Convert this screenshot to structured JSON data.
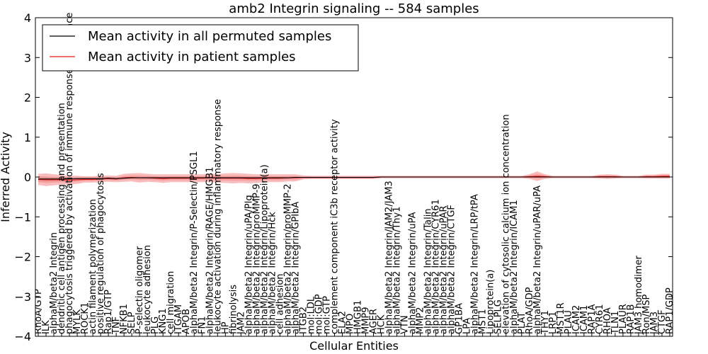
{
  "chart_data": {
    "type": "line",
    "title": "amb2 Integrin signaling -- 584 samples",
    "xlabel": "Cellular Entities",
    "ylabel": "Inferred Activity",
    "ylim": [
      -4,
      4
    ],
    "yticks": [
      -4,
      -3,
      -2,
      -1,
      0,
      1,
      2,
      3,
      4
    ],
    "ytick_labels": [
      "−4",
      "−3",
      "−2",
      "−1",
      "0",
      "1",
      "2",
      "3",
      "4"
    ],
    "grid": false,
    "legend_position": "top-left",
    "legend": [
      {
        "label": "Mean activity in all permuted samples",
        "color": "#000000"
      },
      {
        "label": "Mean activity in patient samples",
        "color": "#e31a1c"
      }
    ],
    "colors": {
      "permuted": "#000000",
      "patient": "#e31a1c",
      "band": "#f47c7c",
      "band_gray": "#b8b8b8"
    },
    "categories": [
      "RhoA/GTP",
      "ILK",
      "alphaM/beta2 Integrin",
      "dendritic cell antigen processing and presentation",
      "phagocytosis triggered by activation of immune response cell surface",
      "MYLK",
      "ROCK1",
      "actin filament polymerization",
      "positive regulation of phagocytosis",
      "Rap1/GTP",
      "TNF",
      "NFKB1",
      "SELP",
      "P-selectin oligomer",
      "leukocyte adhesion",
      "PLG",
      "KNG1",
      "cell migration",
      "ITGAM",
      "APOB",
      "alphaM/beta2 Integrin/P-Selectin/PSGL1",
      "FN1",
      "alphaM/beta2 Integrin/RAGE/HMGB1",
      "leukocyte activation during inflammatory response",
      "HP",
      "fibrinolysis",
      "JAM2",
      "alphaM/beta2 Integrin/uPA/Plg",
      "alphaM/beta2 Integrin/proMMP-9",
      "alphaM/beta2 Integrin/Lipoprotein(a)",
      "alphaM/beta2 Integrin/Hck",
      "cell adhesion",
      "alphaM/beta2 Integrin/proMMP-2",
      "alphaM/beta2 Integrin/GPIbA",
      "ITGB2",
      "mol:LDL",
      "mol:GDP",
      "mol:GTP",
      "complement component iC3b receptor activity",
      "ELA2",
      "MPO",
      "HMGB1",
      "MMP9",
      "AGER",
      "HCK",
      "alphaM/beta2 Integrin/JAM2/JAM3",
      "alphaM/beta2 Integrin/Thy1",
      "VTN",
      "alphaM/beta2 Integrin/uPA",
      "MMP2",
      "alphaM/beta2 Integrin/Talin",
      "alphaM/beta2 Integrin/CYR61",
      "alphaM/beta2 Integrin/uPAR",
      "alphaM/beta2 Integrin/CTGF",
      "GP1BA",
      "LPA",
      "alphaM/beta2 Integrin/LRP/tPA",
      "MST1",
      "Lipoprotein(a)",
      "SELPLG",
      "elevation of cytosolic calcium ion concentration",
      "alphaM/beta2 Integrin/ICAM1",
      "PLAT",
      "RhoA/GDP",
      "alphaM/beta2 Integrin/uPAR/uPA",
      "THY1",
      "LRP1",
      "MST1R",
      "PLAU",
      "ICAM2",
      "ICAM1",
      "RAP1A",
      "CYR61",
      "RHOA",
      "TLN1",
      "PLAUR",
      "RAP1B",
      "JAM3 homodimer",
      "Ron/MSP",
      "JAM3",
      "CTGF",
      "RAP1/GDP"
    ],
    "series": [
      {
        "name": "Mean activity in all permuted samples",
        "values": [
          -0.05,
          -0.05,
          -0.05,
          -0.05,
          -0.05,
          -0.04,
          -0.04,
          -0.04,
          -0.04,
          -0.03,
          -0.04,
          -0.03,
          -0.02,
          -0.02,
          -0.02,
          -0.02,
          -0.02,
          -0.02,
          -0.02,
          -0.02,
          -0.02,
          -0.02,
          -0.02,
          -0.02,
          -0.02,
          -0.02,
          -0.02,
          -0.02,
          -0.02,
          -0.02,
          -0.02,
          -0.02,
          -0.02,
          -0.01,
          -0.01,
          -0.01,
          -0.01,
          -0.01,
          -0.01,
          -0.01,
          -0.01,
          -0.01,
          -0.01,
          -0.01,
          0.0,
          0.0,
          0.0,
          0.0,
          0.0,
          0.0,
          0.0,
          0.0,
          0.0,
          0.0,
          0.0,
          0.0,
          0.0,
          0.0,
          0.0,
          0.0,
          0.0,
          0.0,
          0.0,
          0.0,
          0.0,
          0.0,
          0.0,
          0.0,
          0.0,
          0.0,
          0.0,
          0.0,
          0.0,
          0.0,
          0.0,
          0.0,
          0.0,
          0.0,
          0.0,
          0.0,
          0.0,
          0.0
        ]
      },
      {
        "name": "Mean activity in patient samples",
        "values": [
          -0.06,
          -0.07,
          -0.07,
          -0.07,
          -0.08,
          -0.07,
          -0.06,
          -0.06,
          -0.05,
          -0.04,
          -0.05,
          -0.02,
          -0.01,
          -0.02,
          -0.02,
          -0.03,
          -0.04,
          -0.03,
          -0.03,
          -0.03,
          -0.03,
          -0.03,
          -0.02,
          -0.03,
          -0.03,
          -0.03,
          -0.03,
          -0.04,
          -0.04,
          -0.03,
          -0.03,
          -0.03,
          -0.02,
          -0.02,
          -0.01,
          -0.01,
          -0.01,
          -0.01,
          -0.01,
          -0.01,
          -0.01,
          -0.01,
          -0.01,
          -0.01,
          0.0,
          0.0,
          0.0,
          0.0,
          0.0,
          0.0,
          0.0,
          0.0,
          0.0,
          0.0,
          0.0,
          0.0,
          0.0,
          0.0,
          0.0,
          0.0,
          0.0,
          0.0,
          0.0,
          0.01,
          0.02,
          0.01,
          0.0,
          0.0,
          0.0,
          0.0,
          0.0,
          0.0,
          0.01,
          0.01,
          0.01,
          0.0,
          0.0,
          0.0,
          0.01,
          0.01,
          0.02,
          0.02
        ]
      },
      {
        "name": "",
        "values": [
          0.14,
          0.16,
          0.14,
          0.12,
          0.11,
          0.1,
          0.08,
          0.08,
          0.08,
          0.08,
          0.08,
          0.1,
          0.1,
          0.12,
          0.1,
          0.1,
          0.11,
          0.1,
          0.1,
          0.1,
          0.1,
          0.1,
          0.1,
          0.11,
          0.12,
          0.13,
          0.12,
          0.12,
          0.11,
          0.1,
          0.1,
          0.1,
          0.09,
          0.09,
          0.05,
          0.04,
          0.04,
          0.04,
          0.04,
          0.04,
          0.04,
          0.04,
          0.04,
          0.04,
          0.03,
          0.03,
          0.03,
          0.03,
          0.03,
          0.03,
          0.03,
          0.03,
          0.03,
          0.03,
          0.03,
          0.03,
          0.03,
          0.03,
          0.03,
          0.03,
          0.03,
          0.03,
          0.03,
          0.06,
          0.12,
          0.06,
          0.03,
          0.03,
          0.03,
          0.03,
          0.03,
          0.03,
          0.05,
          0.06,
          0.05,
          0.03,
          0.03,
          0.03,
          0.05,
          0.05,
          0.06,
          0.06
        ]
      },
      {
        "name": "",
        "values": [
          0.06,
          0.06,
          0.05,
          0.05,
          0.05,
          0.04,
          0.04,
          0.04,
          0.04,
          0.03,
          0.04,
          0.03,
          0.02,
          0.02,
          0.03,
          0.03,
          0.03,
          0.03,
          0.03,
          0.03,
          0.03,
          0.03,
          0.03,
          0.03,
          0.03,
          0.03,
          0.03,
          0.03,
          0.03,
          0.03,
          0.03,
          0.03,
          0.03,
          0.02,
          0.02,
          0.02,
          0.02,
          0.02,
          0.02,
          0.02,
          0.02,
          0.02,
          0.02,
          0.02,
          0.02,
          0.02,
          0.02,
          0.02,
          0.02,
          0.02,
          0.02,
          0.02,
          0.02,
          0.02,
          0.02,
          0.02,
          0.02,
          0.02,
          0.02,
          0.02,
          0.02,
          0.02,
          0.02,
          0.02,
          0.02,
          0.02,
          0.02,
          0.02,
          0.02,
          0.02,
          0.02,
          0.02,
          0.02,
          0.02,
          0.02,
          0.02,
          0.02,
          0.02,
          0.02,
          0.02,
          0.02,
          0.02
        ]
      }
    ]
  }
}
